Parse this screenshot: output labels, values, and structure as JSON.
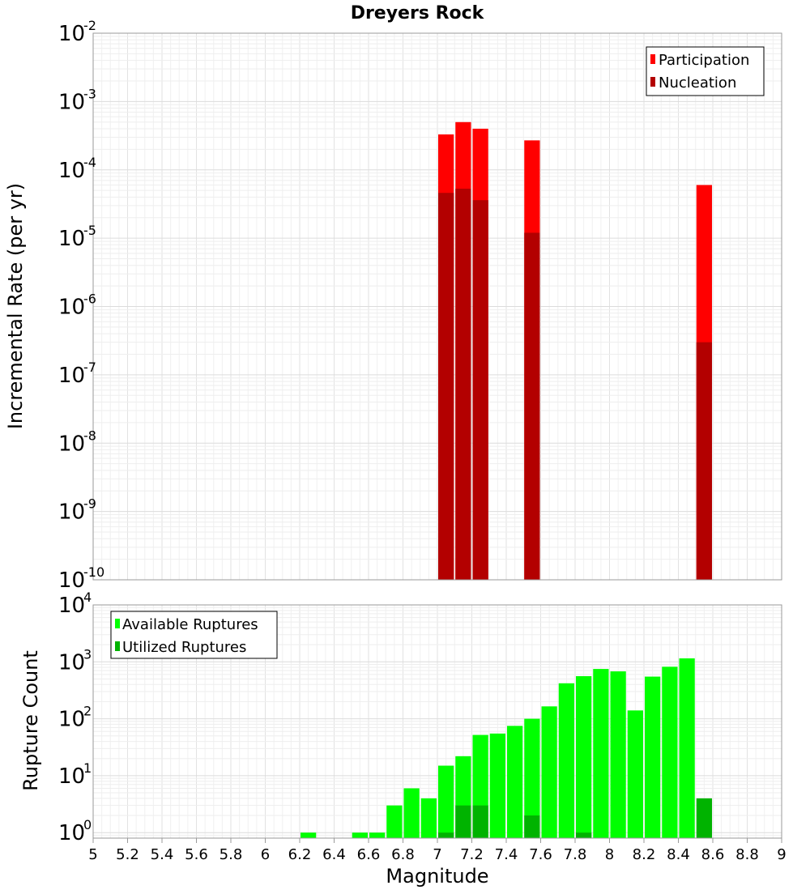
{
  "chart_data": [
    {
      "type": "bar",
      "title": "Dreyers Rock",
      "xlabel": "",
      "ylabel": "Incremental Rate (per yr)",
      "xlim": [
        5,
        9
      ],
      "ylim": [
        1e-10,
        0.01
      ],
      "yscale": "log",
      "grid": true,
      "legend_position": "top-right",
      "y_ticks": [
        {
          "base": "10",
          "exp": "-10"
        },
        {
          "base": "10",
          "exp": "-9"
        },
        {
          "base": "10",
          "exp": "-8"
        },
        {
          "base": "10",
          "exp": "-7"
        },
        {
          "base": "10",
          "exp": "-6"
        },
        {
          "base": "10",
          "exp": "-5"
        },
        {
          "base": "10",
          "exp": "-4"
        },
        {
          "base": "10",
          "exp": "-3"
        },
        {
          "base": "10",
          "exp": "-2"
        }
      ],
      "series": [
        {
          "name": "Participation",
          "color": "#ff0000",
          "points": [
            {
              "x": 7.05,
              "y": 0.00033
            },
            {
              "x": 7.15,
              "y": 0.0005
            },
            {
              "x": 7.25,
              "y": 0.0004
            },
            {
              "x": 7.55,
              "y": 0.00027
            },
            {
              "x": 8.55,
              "y": 6e-05
            }
          ]
        },
        {
          "name": "Nucleation",
          "color": "#b30000",
          "points": [
            {
              "x": 7.05,
              "y": 4.6e-05
            },
            {
              "x": 7.15,
              "y": 5.3e-05
            },
            {
              "x": 7.25,
              "y": 3.6e-05
            },
            {
              "x": 7.55,
              "y": 1.2e-05
            },
            {
              "x": 8.55,
              "y": 3e-07
            }
          ]
        }
      ]
    },
    {
      "type": "bar",
      "title": "",
      "xlabel": "Magnitude",
      "ylabel": "Rupture Count",
      "xlim": [
        5,
        9
      ],
      "ylim": [
        0.8,
        10000
      ],
      "yscale": "log",
      "grid": true,
      "legend_position": "top-left",
      "x_ticks": [
        "5",
        "5.2",
        "5.4",
        "5.6",
        "5.8",
        "6",
        "6.2",
        "6.4",
        "6.6",
        "6.8",
        "7",
        "7.2",
        "7.4",
        "7.6",
        "7.8",
        "8",
        "8.2",
        "8.4",
        "8.6",
        "8.8",
        "9"
      ],
      "y_ticks": [
        {
          "base": "10",
          "exp": "0"
        },
        {
          "base": "10",
          "exp": "1"
        },
        {
          "base": "10",
          "exp": "2"
        },
        {
          "base": "10",
          "exp": "3"
        },
        {
          "base": "10",
          "exp": "4"
        }
      ],
      "series": [
        {
          "name": "Available Ruptures",
          "color": "#00ff00",
          "points": [
            {
              "x": 6.25,
              "y": 1
            },
            {
              "x": 6.55,
              "y": 1
            },
            {
              "x": 6.65,
              "y": 1
            },
            {
              "x": 6.75,
              "y": 3
            },
            {
              "x": 6.85,
              "y": 6
            },
            {
              "x": 6.95,
              "y": 4
            },
            {
              "x": 7.05,
              "y": 15
            },
            {
              "x": 7.15,
              "y": 22
            },
            {
              "x": 7.25,
              "y": 52
            },
            {
              "x": 7.35,
              "y": 55
            },
            {
              "x": 7.45,
              "y": 75
            },
            {
              "x": 7.55,
              "y": 100
            },
            {
              "x": 7.65,
              "y": 165
            },
            {
              "x": 7.75,
              "y": 420
            },
            {
              "x": 7.85,
              "y": 560
            },
            {
              "x": 7.95,
              "y": 750
            },
            {
              "x": 8.05,
              "y": 680
            },
            {
              "x": 8.15,
              "y": 140
            },
            {
              "x": 8.25,
              "y": 550
            },
            {
              "x": 8.35,
              "y": 820
            },
            {
              "x": 8.45,
              "y": 1150
            }
          ]
        },
        {
          "name": "Utilized Ruptures",
          "color": "#00b300",
          "points": [
            {
              "x": 7.05,
              "y": 1
            },
            {
              "x": 7.15,
              "y": 3
            },
            {
              "x": 7.25,
              "y": 3
            },
            {
              "x": 7.55,
              "y": 2
            },
            {
              "x": 7.85,
              "y": 1
            },
            {
              "x": 8.55,
              "y": 4
            }
          ]
        }
      ]
    }
  ]
}
